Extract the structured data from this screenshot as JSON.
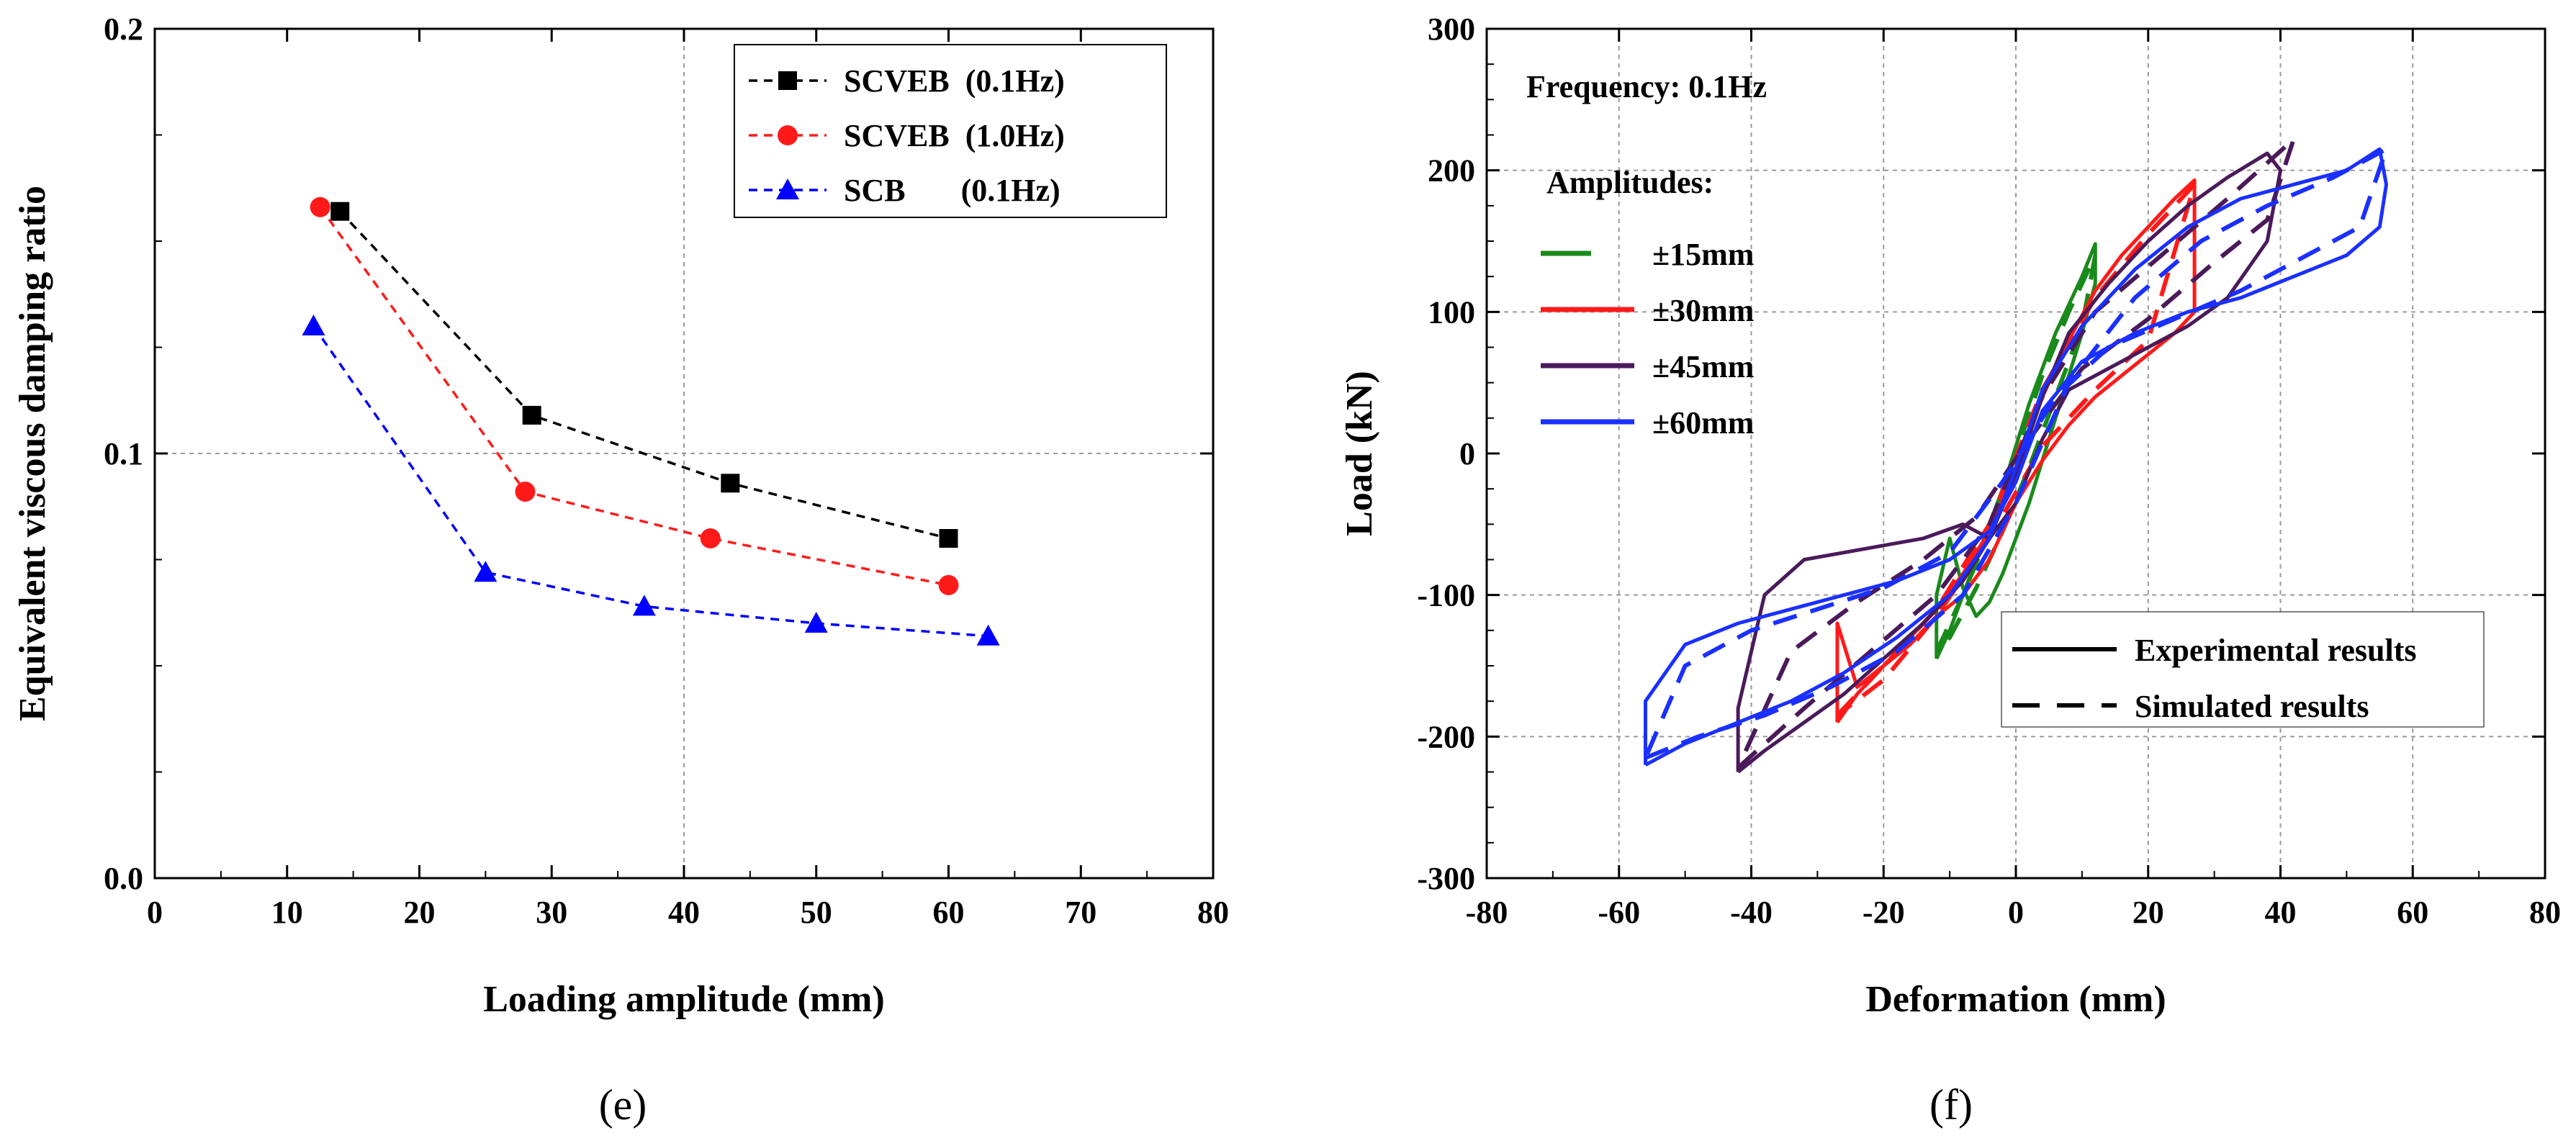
{
  "chart_data": [
    {
      "type": "line",
      "panel_label": "(e)",
      "title": "",
      "xlabel": "Loading amplitude (mm)",
      "ylabel": "Equivalent viscous damping ratio",
      "xlim": [
        0,
        80
      ],
      "ylim": [
        0.0,
        0.2
      ],
      "xticks": [
        "0",
        "10",
        "20",
        "30",
        "40",
        "50",
        "60",
        "70",
        "80"
      ],
      "yticks": [
        "0.0",
        "0.1",
        "0.2"
      ],
      "grid": "dashed at y=0.1 and x=40",
      "legend_position": "top-right",
      "series": [
        {
          "name": "SCVEB  (0.1Hz)",
          "color": "#000000",
          "marker": "square",
          "x": [
            14,
            28.5,
            43.5,
            60
          ],
          "y": [
            0.157,
            0.109,
            0.093,
            0.08
          ]
        },
        {
          "name": "SCVEB  (1.0Hz)",
          "color": "#ff1a1a",
          "marker": "circle",
          "x": [
            12.5,
            28,
            42,
            60
          ],
          "y": [
            0.158,
            0.091,
            0.08,
            0.069
          ]
        },
        {
          "name": "SCB       (0.1Hz)",
          "color": "#0000ff",
          "marker": "triangle",
          "x": [
            12,
            25,
            37,
            50,
            63
          ],
          "y": [
            0.13,
            0.072,
            0.064,
            0.06,
            0.057
          ]
        }
      ]
    },
    {
      "type": "line",
      "panel_label": "(f)",
      "title": "",
      "xlabel": "Deformation (mm)",
      "ylabel": "Load (kN)",
      "xlim": [
        -80,
        80
      ],
      "ylim": [
        -300,
        300
      ],
      "xticks": [
        "-80",
        "-60",
        "-40",
        "-20",
        "0",
        "20",
        "40",
        "60",
        "80"
      ],
      "yticks": [
        "-300",
        "-200",
        "-100",
        "0",
        "100",
        "200",
        "300"
      ],
      "grid": "dashed at y=±100, ±200 and x=0, ±20, ±40, ±60",
      "annotations": [
        "Frequency: 0.1Hz",
        "Amplitudes:"
      ],
      "amplitude_legend": [
        {
          "label": "±15mm",
          "color": "#1a8a1a"
        },
        {
          "label": "±30mm",
          "color": "#ff1a1a"
        },
        {
          "label": "±45mm",
          "color": "#4a1a5a"
        },
        {
          "label": "±60mm",
          "color": "#1a30ff"
        }
      ],
      "style_legend": [
        {
          "label": "Experimental results",
          "style": "solid"
        },
        {
          "label": "Simulated results",
          "style": "dashed"
        }
      ],
      "series": [
        {
          "name": "±15mm experimental",
          "color": "#1a8a1a",
          "style": "solid",
          "x": [
            -12,
            -10,
            -8,
            -6,
            -4,
            -2,
            0,
            2,
            4,
            6,
            8,
            10,
            12,
            12,
            10,
            8,
            6,
            4,
            2,
            0,
            -2,
            -4,
            -6,
            -8,
            -10,
            -12,
            -12
          ],
          "y": [
            -145,
            -125,
            -100,
            -75,
            -50,
            -25,
            5,
            35,
            60,
            85,
            105,
            125,
            148,
            120,
            85,
            55,
            25,
            -5,
            -35,
            -60,
            -85,
            -105,
            -115,
            -95,
            -60,
            -100,
            -145
          ]
        },
        {
          "name": "±15mm simulated",
          "color": "#1a8a1a",
          "style": "dashed",
          "x": [
            -12,
            -8,
            -4,
            0,
            4,
            8,
            12,
            10,
            6,
            2,
            -2,
            -6,
            -10,
            -12
          ],
          "y": [
            -140,
            -100,
            -55,
            0,
            55,
            100,
            140,
            90,
            40,
            -10,
            -55,
            -95,
            -130,
            -140
          ]
        },
        {
          "name": "±30mm experimental",
          "color": "#ff1a1a",
          "style": "solid",
          "x": [
            -27,
            -24,
            -20,
            -16,
            -12,
            -8,
            -4,
            0,
            4,
            8,
            12,
            16,
            20,
            24,
            27,
            27,
            24,
            20,
            16,
            12,
            8,
            4,
            0,
            -4,
            -8,
            -12,
            -16,
            -20,
            -24,
            -27,
            -27
          ],
          "y": [
            -190,
            -170,
            -150,
            -130,
            -110,
            -85,
            -55,
            -10,
            40,
            80,
            115,
            140,
            160,
            180,
            193,
            100,
            85,
            70,
            55,
            40,
            20,
            -5,
            -35,
            -75,
            -100,
            -115,
            -135,
            -150,
            -165,
            -120,
            -190
          ]
        },
        {
          "name": "±30mm simulated",
          "color": "#ff1a1a",
          "style": "dashed",
          "x": [
            -27,
            -20,
            -12,
            -4,
            4,
            12,
            20,
            27,
            20,
            12,
            4,
            -4,
            -12,
            -20,
            -27
          ],
          "y": [
            -185,
            -150,
            -110,
            -50,
            45,
            110,
            155,
            190,
            80,
            45,
            5,
            -60,
            -115,
            -160,
            -185
          ]
        },
        {
          "name": "±45mm experimental",
          "color": "#4a1a5a",
          "style": "solid",
          "x": [
            -42,
            -38,
            -32,
            -26,
            -20,
            -14,
            -8,
            -4,
            0,
            4,
            8,
            14,
            20,
            26,
            32,
            38,
            40,
            38,
            32,
            26,
            20,
            14,
            8,
            4,
            0,
            -4,
            -8,
            -14,
            -20,
            -26,
            -32,
            -38,
            -42,
            -42
          ],
          "y": [
            -225,
            -210,
            -190,
            -170,
            -145,
            -120,
            -90,
            -60,
            -15,
            40,
            85,
            120,
            150,
            175,
            195,
            212,
            200,
            150,
            110,
            90,
            75,
            60,
            45,
            10,
            -35,
            -60,
            -50,
            -60,
            -65,
            -70,
            -75,
            -100,
            -180,
            -225
          ]
        },
        {
          "name": "±45mm simulated",
          "color": "#4a1a5a",
          "style": "dashed",
          "x": [
            -42,
            -32,
            -22,
            -12,
            -4,
            4,
            12,
            22,
            32,
            42,
            38,
            30,
            20,
            10,
            2,
            -6,
            -14,
            -24,
            -34,
            -42
          ],
          "y": [
            -222,
            -180,
            -140,
            -100,
            -50,
            40,
            100,
            140,
            180,
            222,
            165,
            135,
            95,
            60,
            10,
            -45,
            -75,
            -105,
            -140,
            -222
          ]
        },
        {
          "name": "±60mm experimental",
          "color": "#1a30ff",
          "style": "solid",
          "x": [
            -56,
            -50,
            -42,
            -34,
            -26,
            -18,
            -10,
            -4,
            0,
            4,
            10,
            18,
            26,
            34,
            42,
            50,
            55,
            56,
            55,
            50,
            42,
            34,
            26,
            18,
            10,
            4,
            0,
            -4,
            -10,
            -18,
            -26,
            -34,
            -42,
            -50,
            -56,
            -56
          ],
          "y": [
            -220,
            -205,
            -190,
            -175,
            -155,
            -130,
            -100,
            -60,
            -10,
            45,
            90,
            130,
            160,
            180,
            190,
            200,
            215,
            190,
            160,
            140,
            125,
            110,
            100,
            85,
            65,
            30,
            -20,
            -55,
            -75,
            -90,
            -100,
            -110,
            -120,
            -135,
            -175,
            -220
          ]
        },
        {
          "name": "±60mm simulated",
          "color": "#1a30ff",
          "style": "dashed",
          "x": [
            -56,
            -48,
            -38,
            -28,
            -18,
            -8,
            0,
            8,
            18,
            28,
            38,
            48,
            56,
            52,
            44,
            34,
            24,
            14,
            6,
            -2,
            -10,
            -20,
            -30,
            -40,
            -50,
            -56
          ],
          "y": [
            -215,
            -200,
            -185,
            -165,
            -140,
            -100,
            -35,
            50,
            110,
            150,
            175,
            195,
            215,
            160,
            140,
            115,
            95,
            75,
            40,
            -20,
            -70,
            -95,
            -110,
            -125,
            -150,
            -215
          ]
        }
      ]
    }
  ]
}
